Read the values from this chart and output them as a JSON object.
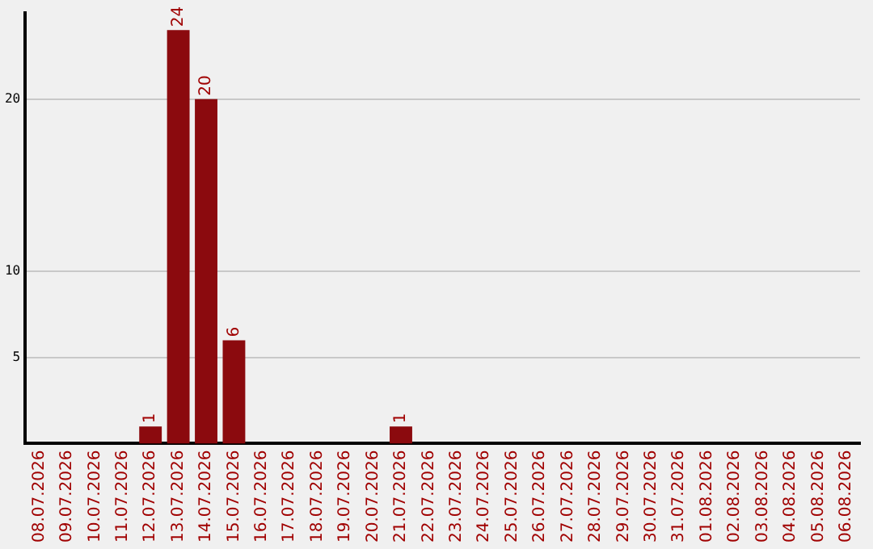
{
  "chart_data": {
    "type": "bar",
    "categories": [
      "08.07.2026",
      "09.07.2026",
      "10.07.2026",
      "11.07.2026",
      "12.07.2026",
      "13.07.2026",
      "14.07.2026",
      "15.07.2026",
      "16.07.2026",
      "17.07.2026",
      "18.07.2026",
      "19.07.2026",
      "20.07.2026",
      "21.07.2026",
      "22.07.2026",
      "23.07.2026",
      "24.07.2026",
      "25.07.2026",
      "26.07.2026",
      "27.07.2026",
      "28.07.2026",
      "29.07.2026",
      "30.07.2026",
      "31.07.2026",
      "01.08.2026",
      "02.08.2026",
      "03.08.2026",
      "04.08.2026",
      "05.08.2026",
      "06.08.2026"
    ],
    "values": [
      0,
      0,
      0,
      0,
      1,
      24,
      20,
      6,
      0,
      0,
      0,
      0,
      0,
      1,
      0,
      0,
      0,
      0,
      0,
      0,
      0,
      0,
      0,
      0,
      0,
      0,
      0,
      0,
      0,
      0
    ],
    "value_labels": [
      null,
      null,
      null,
      null,
      "1",
      "24",
      "20",
      "6",
      null,
      null,
      null,
      null,
      null,
      "1",
      null,
      null,
      null,
      null,
      null,
      null,
      null,
      null,
      null,
      null,
      null,
      null,
      null,
      null,
      null,
      null
    ],
    "color": "#8b0a0e",
    "ylim": [
      0,
      25
    ],
    "yticks": [
      5,
      10,
      20
    ],
    "grid": "y",
    "legend": false
  }
}
